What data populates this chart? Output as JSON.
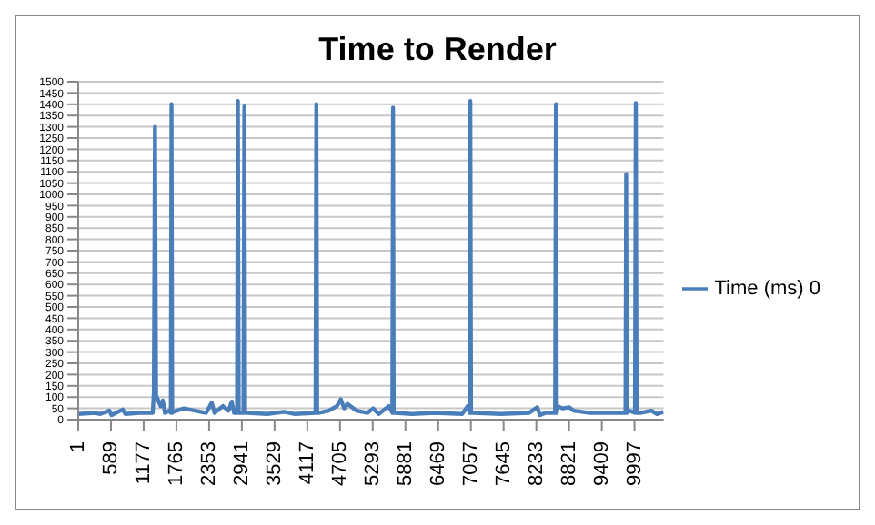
{
  "chart_data": {
    "type": "line",
    "title": "Time to Render",
    "legend": "right",
    "grid": "y",
    "marker": "none",
    "x": [
      1,
      300,
      400,
      560,
      600,
      800,
      850,
      1100,
      1340,
      1360,
      1380,
      1400,
      1430,
      1480,
      1520,
      1560,
      1640,
      1665,
      1677,
      1690,
      1710,
      1900,
      2100,
      2300,
      2400,
      2450,
      2600,
      2700,
      2760,
      2800,
      2855,
      2870,
      2885,
      2970,
      2986,
      3000,
      3040,
      3400,
      3700,
      3900,
      4265,
      4280,
      4295,
      4320,
      4500,
      4650,
      4720,
      4780,
      4840,
      5000,
      5200,
      5300,
      5400,
      5580,
      5645,
      5658,
      5670,
      5700,
      6000,
      6400,
      6900,
      7000,
      7035,
      7047,
      7060,
      7100,
      7600,
      8100,
      8250,
      8300,
      8400,
      8570,
      8585,
      8600,
      8620,
      8700,
      8820,
      8900,
      9200,
      9600,
      9835,
      9847,
      9860,
      9900,
      10005,
      10020,
      10035,
      10100,
      10300,
      10400,
      10518
    ],
    "series": [
      {
        "name": "Time (ms) 0",
        "color": "#4a7ebb",
        "values": [
          25,
          30,
          25,
          40,
          20,
          45,
          25,
          30,
          30,
          120,
          1300,
          110,
          90,
          60,
          85,
          30,
          40,
          30,
          1400,
          30,
          35,
          50,
          40,
          30,
          75,
          30,
          60,
          40,
          80,
          30,
          30,
          1415,
          30,
          30,
          1390,
          30,
          30,
          25,
          35,
          25,
          30,
          1400,
          30,
          30,
          40,
          60,
          90,
          50,
          70,
          40,
          30,
          50,
          25,
          60,
          30,
          1385,
          30,
          30,
          25,
          30,
          25,
          60,
          30,
          1415,
          30,
          30,
          25,
          30,
          55,
          20,
          30,
          30,
          1400,
          30,
          60,
          50,
          55,
          40,
          30,
          30,
          30,
          1090,
          30,
          40,
          30,
          1405,
          30,
          30,
          40,
          25,
          35
        ]
      }
    ],
    "xlim": [
      1,
      10518
    ],
    "xticks": [
      1,
      589,
      1177,
      1765,
      2353,
      2941,
      3529,
      4117,
      4705,
      5293,
      5881,
      6469,
      7057,
      7645,
      8233,
      8821,
      9409,
      9997
    ],
    "ylim": [
      0,
      1500
    ],
    "yticks": [
      0,
      50,
      100,
      150,
      200,
      250,
      300,
      350,
      400,
      450,
      500,
      550,
      600,
      650,
      700,
      750,
      800,
      850,
      900,
      950,
      1000,
      1050,
      1100,
      1150,
      1200,
      1250,
      1300,
      1350,
      1400,
      1450,
      1500
    ]
  }
}
